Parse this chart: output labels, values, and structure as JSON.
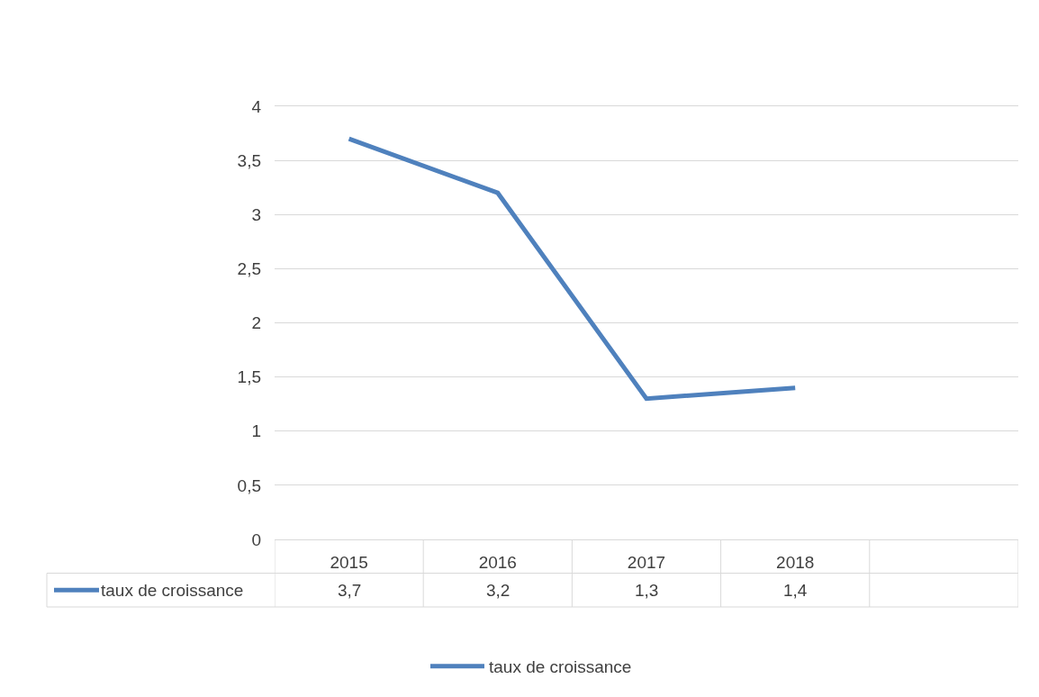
{
  "chart_data": {
    "type": "line",
    "categories": [
      "2015",
      "2016",
      "2017",
      "2018",
      null
    ],
    "series": [
      {
        "name": "taux de croissance",
        "color": "#4f81bd",
        "values": [
          3.7,
          3.2,
          1.3,
          1.4,
          null
        ],
        "value_labels": [
          "3,7",
          "3,2",
          "1,3",
          "1,4",
          null
        ]
      }
    ],
    "ylim": [
      0,
      4
    ],
    "yticks": [
      0,
      {
        "value": 0.5,
        "label": "0,5"
      },
      1,
      {
        "value": 1.5,
        "label": "1,5"
      },
      2,
      {
        "value": 2.5,
        "label": "2,5"
      },
      3,
      {
        "value": 3.5,
        "label": "3,5"
      },
      4
    ],
    "grid": "y",
    "legend": "bottom",
    "marker": "none",
    "line_style": "solid"
  }
}
